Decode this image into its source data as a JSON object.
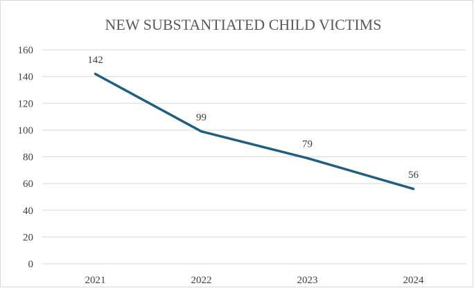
{
  "chart_data": {
    "type": "line",
    "title": "NEW SUBSTANTIATED CHILD VICTIMS",
    "xlabel": "",
    "ylabel": "",
    "categories": [
      "2021",
      "2022",
      "2023",
      "2024"
    ],
    "series": [
      {
        "values": [
          142,
          99,
          79,
          56
        ],
        "color": "#1f5f7f"
      }
    ],
    "data_labels": [
      "142",
      "99",
      "79",
      "56"
    ],
    "ylim": [
      0,
      160
    ],
    "yticks": [
      0,
      20,
      40,
      60,
      80,
      100,
      120,
      140,
      160
    ],
    "ytick_labels": [
      "0",
      "20",
      "40",
      "60",
      "80",
      "100",
      "120",
      "140",
      "160"
    ],
    "grid": true,
    "legend": "none"
  }
}
